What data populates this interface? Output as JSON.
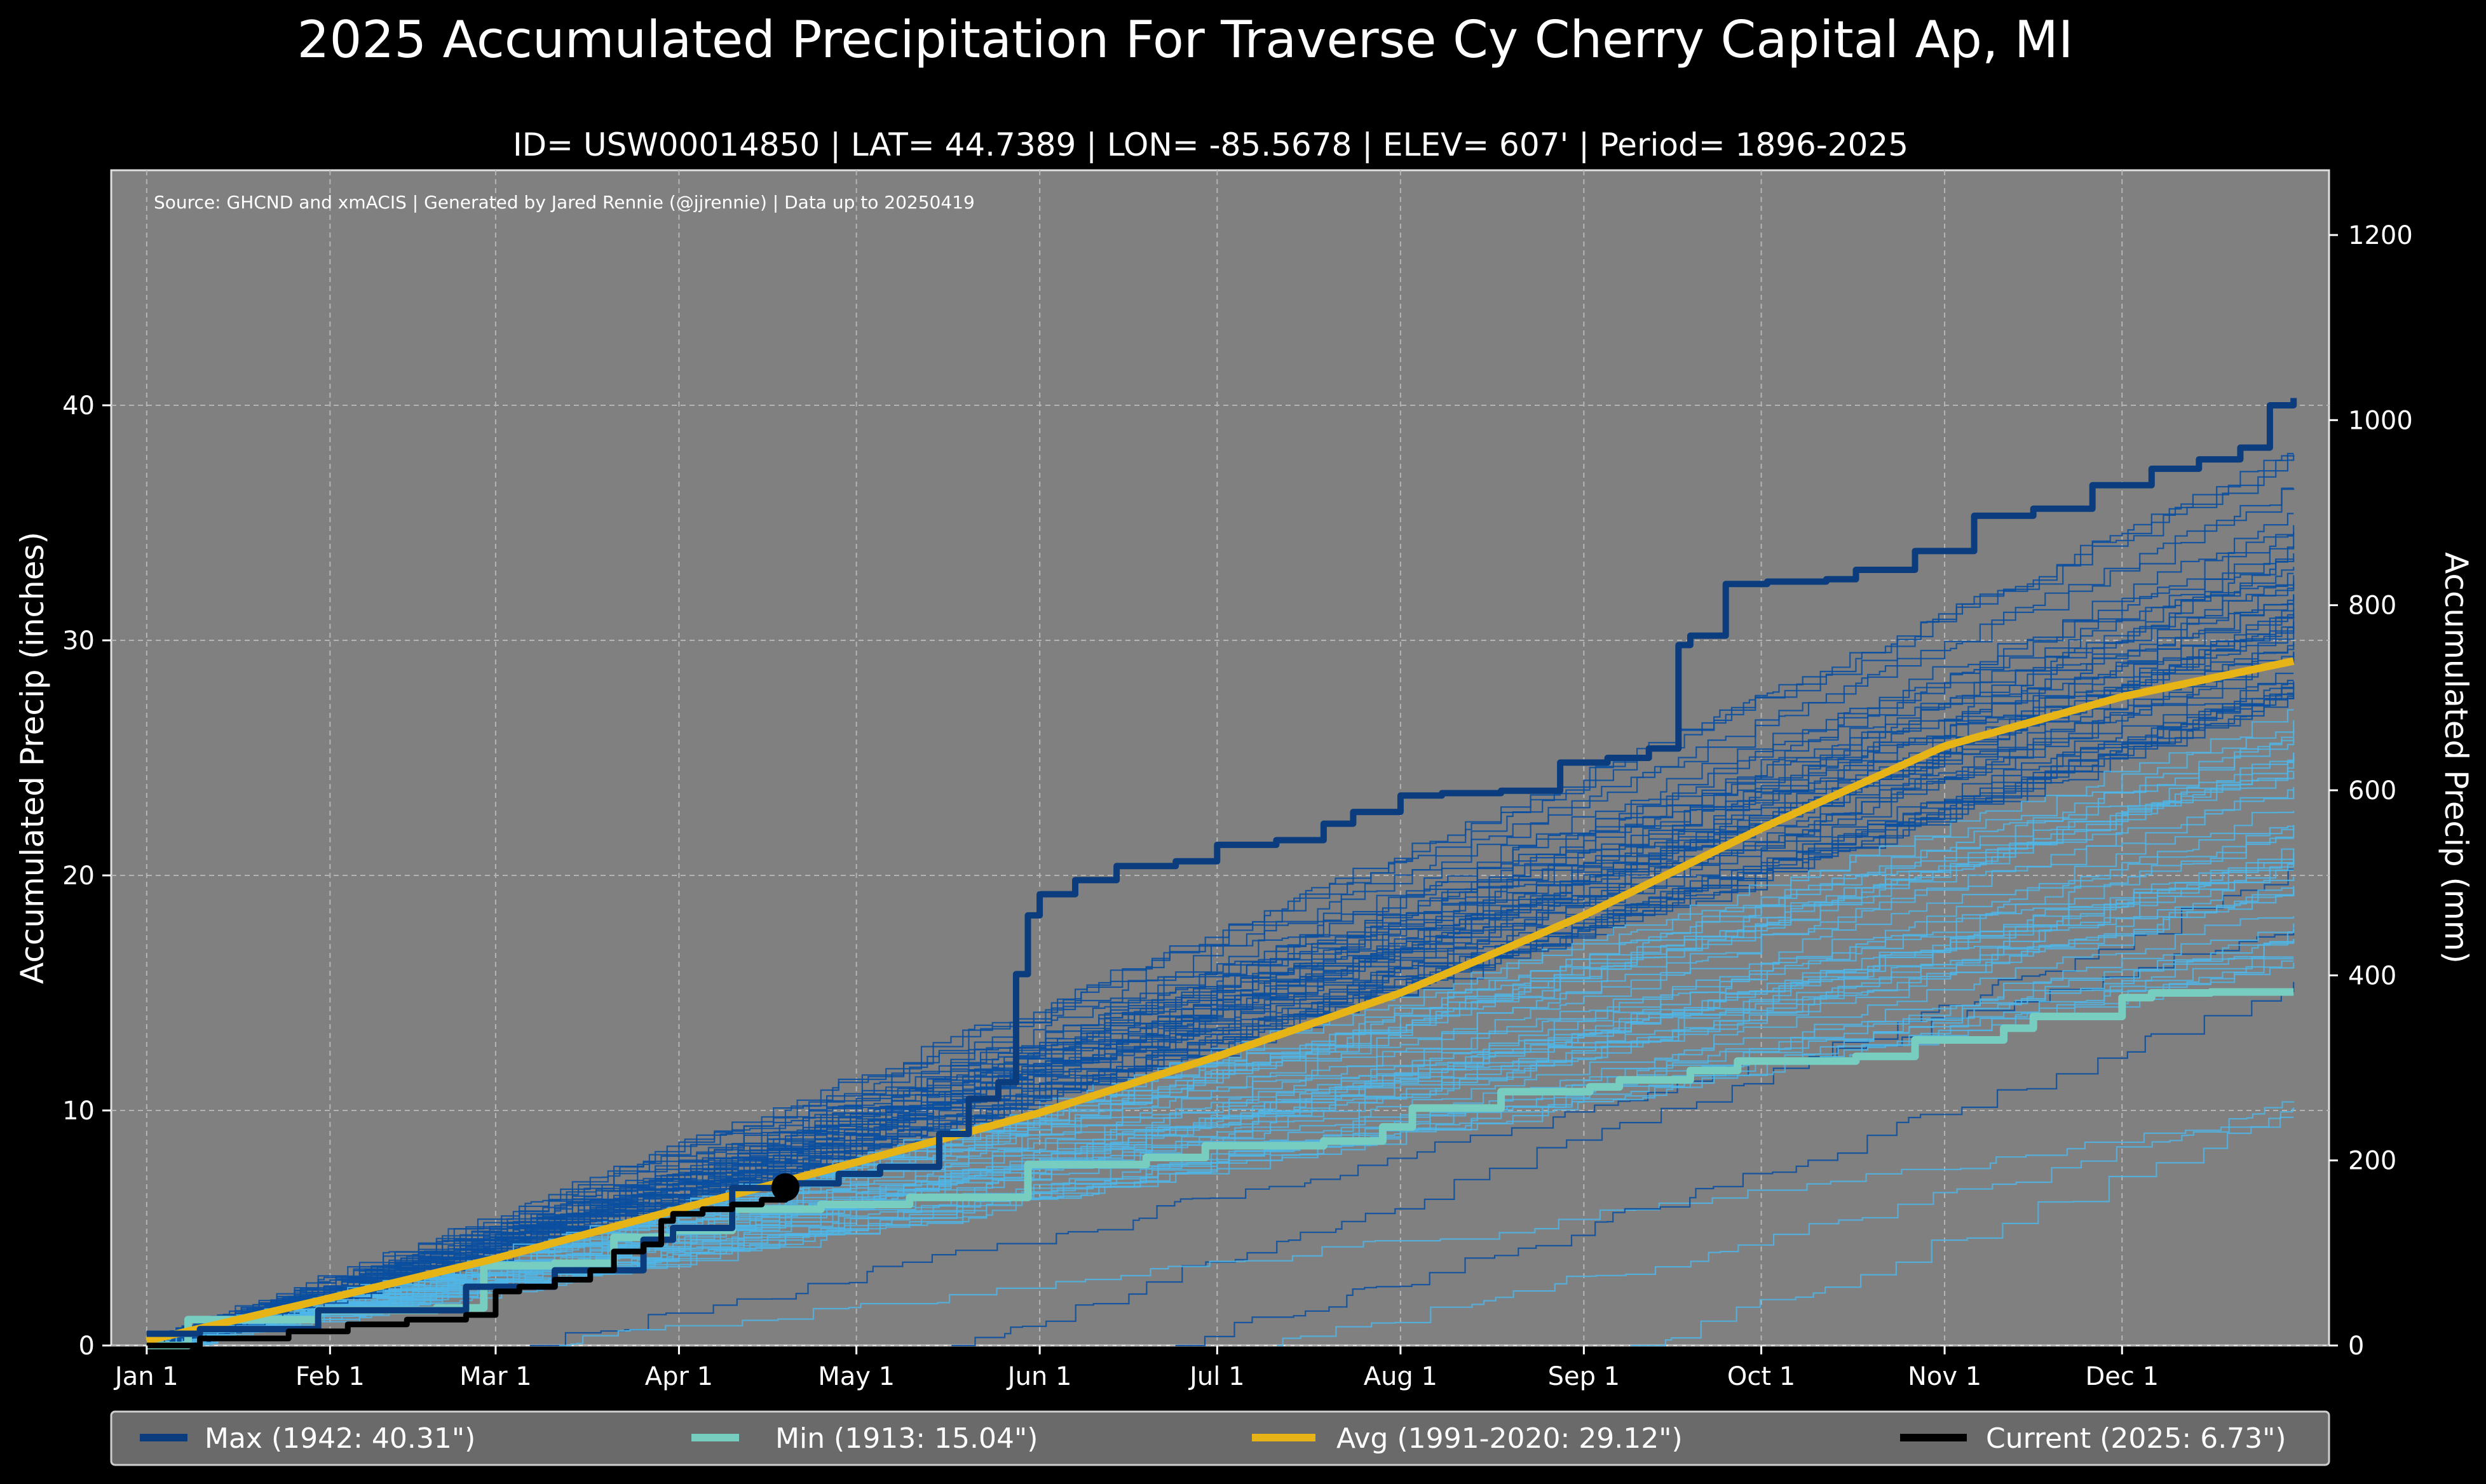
{
  "title": "2025 Accumulated Precipitation For Traverse Cy Cherry Capital Ap, MI",
  "subtitle": "ID= USW00014850 | LAT= 44.7389 | LON= -85.5678 | ELEV= 607' | Period= 1896-2025",
  "source_note": "Source: GHCND and xmACIS | Generated by Jared Rennie (@jjrennie) | Data up to 20250419",
  "colors": {
    "background": "#000000",
    "plot_bg": "#808080",
    "max": "#0b3d7e",
    "min": "#76cdc0",
    "avg": "#e6b416",
    "current": "#000000",
    "history_dark": "#0a4fa0",
    "history_light": "#4fb6e8",
    "legend_bg": "#6a6a6a"
  },
  "chart_data": {
    "type": "line",
    "title": "2025 Accumulated Precipitation For Traverse Cy Cherry Capital Ap, MI",
    "xlabel": "",
    "ylabel": "Accumulated Precip (inches)",
    "ylabel_right": "Accumulated Precip (mm)",
    "xlim": [
      -5,
      370
    ],
    "ylim": [
      0,
      50
    ],
    "ylim_right_mm": [
      0,
      1270
    ],
    "grid": true,
    "legend_position": "bottom",
    "x_ticks": [
      {
        "day": 1,
        "label": "Jan 1"
      },
      {
        "day": 32,
        "label": "Feb 1"
      },
      {
        "day": 60,
        "label": "Mar 1"
      },
      {
        "day": 91,
        "label": "Apr 1"
      },
      {
        "day": 121,
        "label": "May 1"
      },
      {
        "day": 152,
        "label": "Jun 1"
      },
      {
        "day": 182,
        "label": "Jul 1"
      },
      {
        "day": 213,
        "label": "Aug 1"
      },
      {
        "day": 244,
        "label": "Sep 1"
      },
      {
        "day": 274,
        "label": "Oct 1"
      },
      {
        "day": 305,
        "label": "Nov 1"
      },
      {
        "day": 335,
        "label": "Dec 1"
      }
    ],
    "y_ticks_left": [
      0,
      10,
      20,
      30,
      40
    ],
    "y_ticks_right_mm": [
      0,
      200,
      400,
      600,
      800,
      1000,
      1200
    ],
    "series": [
      {
        "name": "Max (1942:  40.31\")",
        "role": "max",
        "x": [
          1,
          10,
          30,
          55,
          70,
          85,
          90,
          100,
          110,
          118,
          125,
          135,
          140,
          145,
          148,
          150,
          152,
          158,
          165,
          175,
          182,
          192,
          200,
          205,
          213,
          220,
          230,
          240,
          248,
          255,
          260,
          262,
          268,
          275,
          285,
          290,
          300,
          310,
          320,
          330,
          340,
          348,
          355,
          360,
          364
        ],
        "values": [
          0.5,
          0.7,
          1.5,
          2.5,
          3.2,
          4.5,
          5.0,
          6.7,
          6.9,
          7.3,
          7.6,
          9.0,
          10.5,
          11.2,
          15.8,
          18.3,
          19.2,
          19.8,
          20.4,
          20.6,
          21.3,
          21.5,
          22.2,
          22.7,
          23.4,
          23.5,
          23.6,
          24.8,
          25.0,
          25.4,
          29.8,
          30.2,
          32.4,
          32.5,
          32.6,
          33.0,
          33.8,
          35.3,
          35.6,
          36.6,
          37.3,
          37.7,
          38.2,
          40.0,
          40.31
        ]
      },
      {
        "name": "Min (1913:  15.04\")",
        "role": "min",
        "x": [
          1,
          8,
          30,
          50,
          58,
          70,
          80,
          90,
          100,
          115,
          130,
          150,
          170,
          180,
          200,
          210,
          215,
          230,
          245,
          250,
          262,
          270,
          290,
          300,
          315,
          320,
          335,
          340,
          350,
          364
        ],
        "values": [
          0.0,
          1.1,
          1.5,
          1.6,
          3.4,
          3.5,
          4.6,
          4.9,
          5.8,
          6.0,
          6.3,
          7.7,
          8.0,
          8.5,
          8.7,
          9.3,
          10.1,
          10.8,
          11.0,
          11.3,
          11.7,
          12.1,
          12.3,
          13.0,
          13.5,
          14.0,
          14.8,
          15.0,
          15.04,
          15.04
        ]
      },
      {
        "name": "Avg (1991-2020:  29.12\")",
        "role": "avg",
        "x": [
          1,
          30,
          60,
          91,
          121,
          152,
          182,
          213,
          244,
          274,
          305,
          335,
          364
        ],
        "values": [
          0.2,
          1.9,
          3.7,
          5.8,
          7.8,
          9.9,
          12.3,
          15.0,
          18.3,
          22.0,
          25.5,
          27.6,
          29.12
        ]
      },
      {
        "name": "Current (2025:   6.73\")",
        "role": "current",
        "x": [
          1,
          10,
          25,
          35,
          45,
          55,
          60,
          64,
          70,
          76,
          80,
          85,
          88,
          90,
          95,
          100,
          105,
          109
        ],
        "values": [
          0.0,
          0.3,
          0.6,
          0.9,
          1.1,
          1.3,
          2.3,
          2.5,
          2.8,
          3.2,
          4.0,
          4.3,
          5.3,
          5.6,
          5.8,
          6.0,
          6.2,
          6.73
        ]
      }
    ],
    "current_point": {
      "x": 109,
      "value": 6.73
    }
  },
  "legend": [
    {
      "label": "Max (1942:  40.31\")",
      "color": "#0b3d7e"
    },
    {
      "label": "Min (1913:  15.04\")",
      "color": "#76cdc0"
    },
    {
      "label": "Avg (1991-2020:  29.12\")",
      "color": "#e6b416"
    },
    {
      "label": "Current (2025:   6.73\")",
      "color": "#000000"
    }
  ]
}
